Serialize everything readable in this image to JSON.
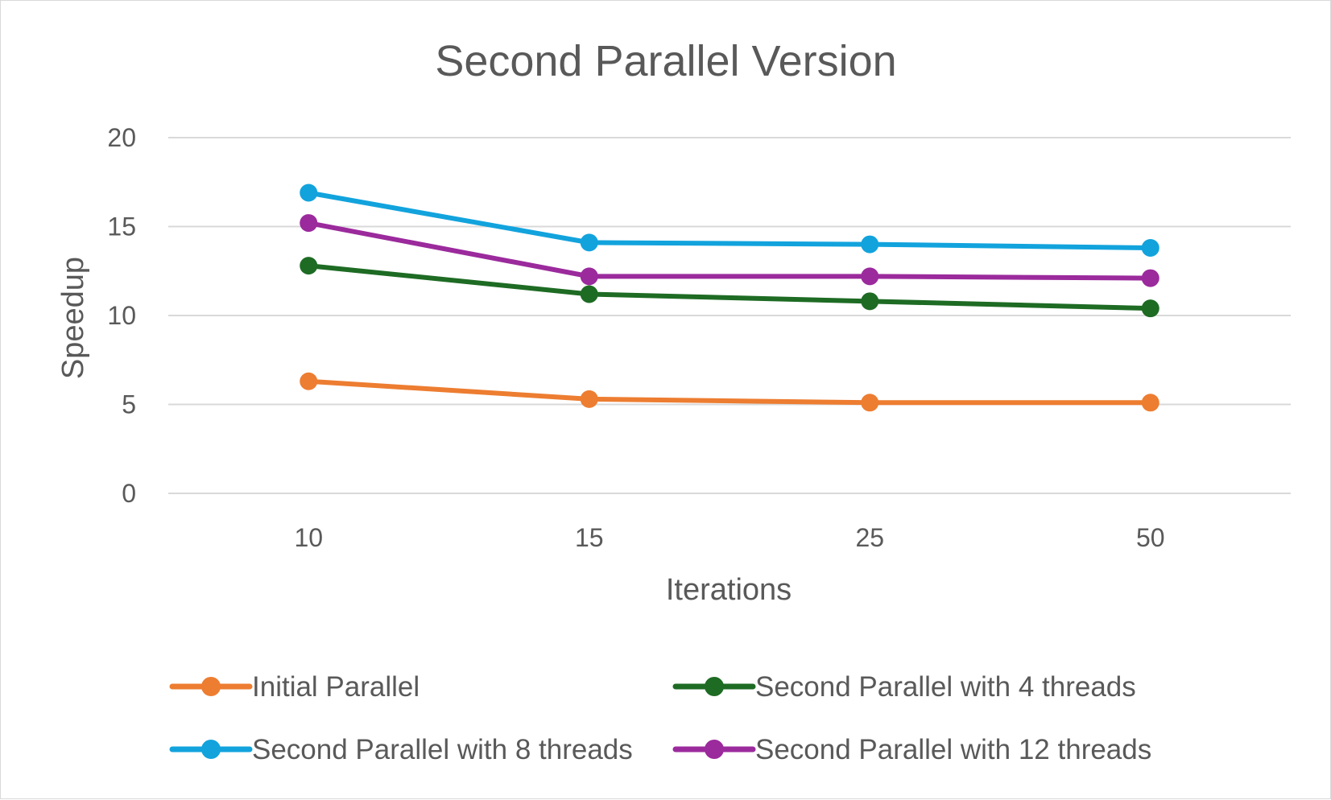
{
  "colors": {
    "background": "#ffffff",
    "gridline": "#d9d9d9",
    "text": "#595959"
  },
  "chart_data": {
    "type": "line",
    "title": "Second Parallel Version",
    "xlabel": "Iterations",
    "ylabel": "Speedup",
    "categories": [
      "10",
      "15",
      "25",
      "50"
    ],
    "ylim": [
      0,
      20
    ],
    "yticks": [
      0,
      5,
      10,
      15,
      20
    ],
    "grid": true,
    "legend_position": "bottom",
    "series": [
      {
        "name": "Initial Parallel",
        "color": "#ed7d31",
        "marker": "circle",
        "values": [
          6.3,
          5.3,
          5.1,
          5.1
        ]
      },
      {
        "name": "Second Parallel with 4 threads",
        "color": "#1e6b24",
        "marker": "circle",
        "values": [
          12.8,
          11.2,
          10.8,
          10.4
        ]
      },
      {
        "name": "Second Parallel with 8 threads",
        "color": "#12a3dd",
        "marker": "circle",
        "values": [
          16.9,
          14.1,
          14.0,
          13.8
        ]
      },
      {
        "name": "Second Parallel with 12 threads",
        "color": "#9b2a9c",
        "marker": "circle",
        "values": [
          15.2,
          12.2,
          12.2,
          12.1
        ]
      }
    ]
  }
}
